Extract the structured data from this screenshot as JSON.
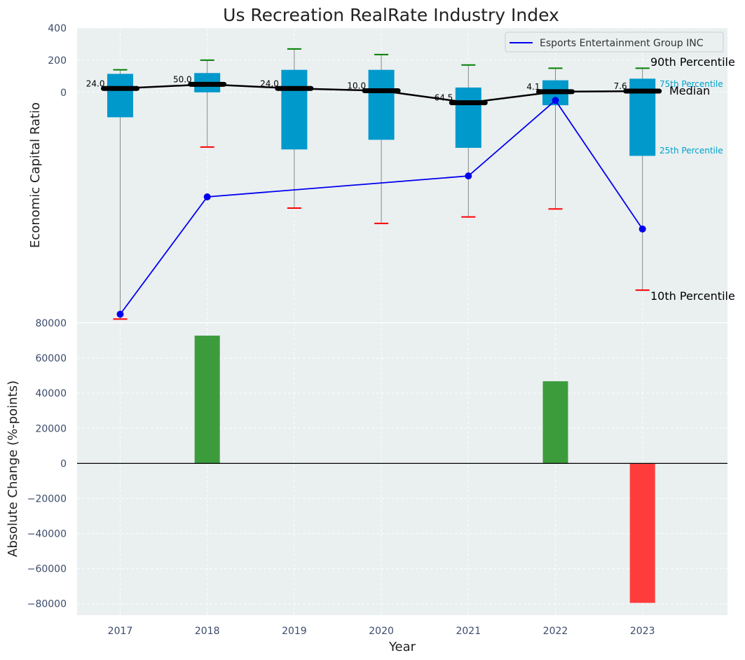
{
  "chart_data": [
    {
      "type": "box",
      "title": "Us Recreation RealRate Industry Index",
      "ylabel": "Economic Capital Ratio",
      "ylim": [
        -1430,
        400
      ],
      "yticks": [
        0,
        200,
        400
      ],
      "categories": [
        "2017",
        "2018",
        "2019",
        "2020",
        "2021",
        "2022",
        "2023"
      ],
      "p10": [
        -1410,
        -340,
        -720,
        -815,
        -775,
        -725,
        -1230
      ],
      "p25": [
        -155,
        0,
        -355,
        -295,
        -345,
        -80,
        -395
      ],
      "median": [
        24,
        50,
        24,
        10,
        -64.5,
        4.1,
        7.6
      ],
      "median_labels": [
        "24.0",
        "50.0",
        "24.0",
        "10.0",
        "-64.5",
        "4.1",
        "7.6"
      ],
      "p75": [
        115,
        120,
        140,
        140,
        30,
        75,
        85
      ],
      "p90": [
        140,
        200,
        270,
        235,
        170,
        150,
        150
      ],
      "company_series": {
        "name": "Esports Entertainment Group INC",
        "values": [
          -1380,
          -650,
          null,
          null,
          -520,
          -50,
          -850
        ]
      },
      "annotations": {
        "p90": "90th Percentile",
        "p75": "75th Percentile",
        "median": "Median",
        "p25": "25th Percentile",
        "p10": "10th Percentile"
      },
      "colors": {
        "box": "#0099cc",
        "median_line": "#000000",
        "company_line": "#0000ee",
        "whisker_high": "#008000",
        "whisker_low": "#ff0000",
        "percentile_label": "#00a0c8"
      }
    },
    {
      "type": "bar",
      "ylabel": "Absolute Change (%-points)",
      "xlabel": "Year",
      "ylim": [
        -86500,
        80000
      ],
      "yticks": [
        -80000,
        -60000,
        -40000,
        -20000,
        0,
        20000,
        40000,
        60000,
        80000
      ],
      "ytick_labels": [
        "−80000",
        "−60000",
        "−40000",
        "−20000",
        "0",
        "20000",
        "40000",
        "60000",
        "80000"
      ],
      "categories": [
        "2017",
        "2018",
        "2019",
        "2020",
        "2021",
        "2022",
        "2023"
      ],
      "values": [
        0,
        72800,
        0,
        0,
        0,
        46800,
        -79500
      ],
      "colors": {
        "positive": "#3c9c3c",
        "negative": "#ff3c3c",
        "zero_line": "#000000"
      }
    }
  ]
}
